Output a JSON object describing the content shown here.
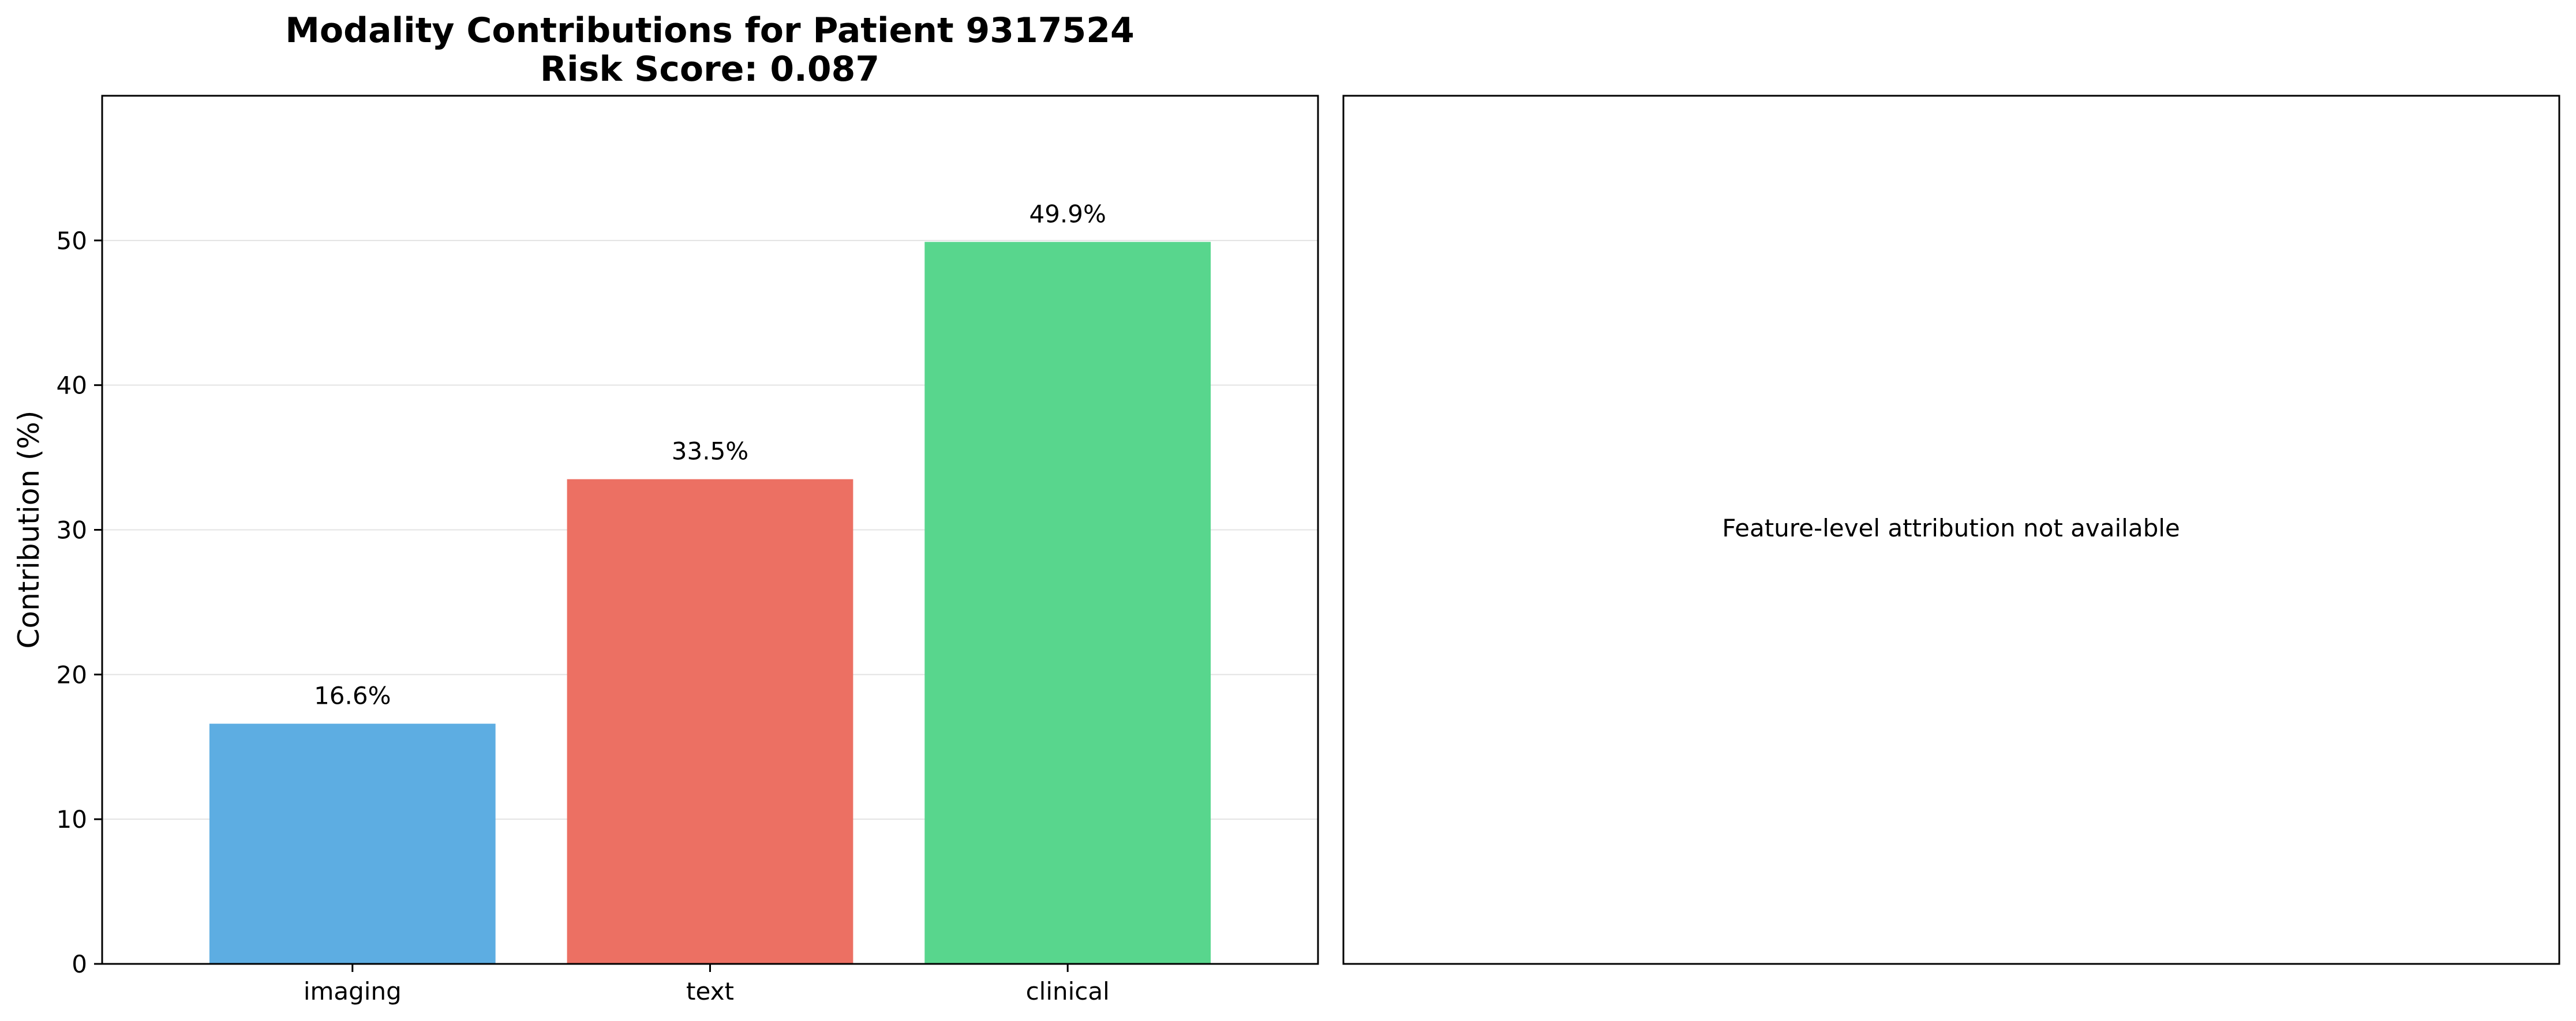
{
  "chart_data": [
    {
      "type": "bar",
      "title": "Modality Contributions for Patient 9317524",
      "subtitle": "Risk Score: 0.087",
      "xlabel": "",
      "ylabel": "Contribution (%)",
      "categories": [
        "imaging",
        "text",
        "clinical"
      ],
      "values": [
        16.6,
        33.5,
        49.9
      ],
      "value_labels": [
        "16.6%",
        "33.5%",
        "49.9%"
      ],
      "colors": [
        "#5dade2",
        "#ec7063",
        "#58d68d"
      ],
      "ylim": [
        0,
        60
      ],
      "yticks": [
        0,
        10,
        20,
        30,
        40,
        50
      ],
      "grid": true
    },
    {
      "type": "other",
      "message": "Feature-level attribution not available"
    }
  ]
}
